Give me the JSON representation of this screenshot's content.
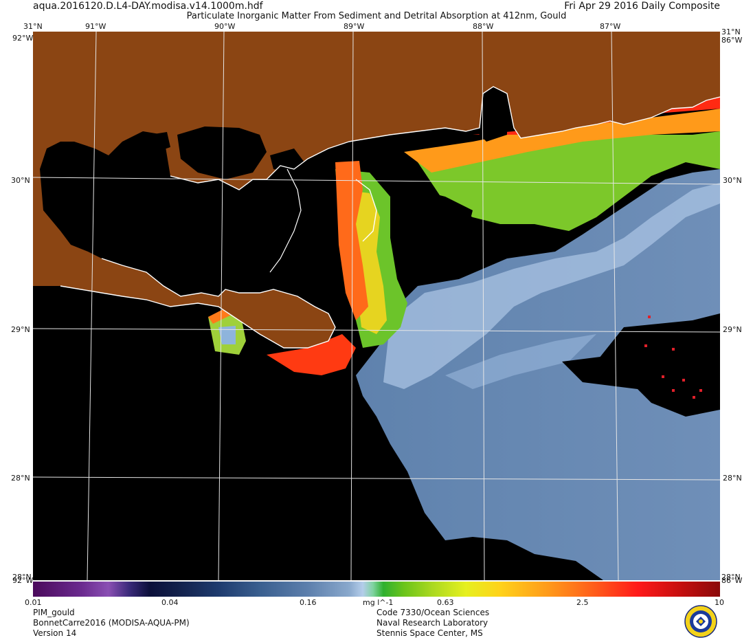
{
  "header": {
    "filename": "aqua.2016120.D.L4-DAY.modisa.v14.1000m.hdf",
    "date": "Fri Apr 29 2016 Daily Composite",
    "product_title": "Particulate Inorganic Matter From Sediment and Detrital Absorption at 412nm, Gould"
  },
  "map": {
    "lon_labels": [
      "91°W",
      "90°W",
      "89°W",
      "88°W",
      "87°W"
    ],
    "lat_labels": [
      "30°N",
      "29°N",
      "28°N"
    ],
    "corner_top_left": "31°N",
    "corner_top_right": "31°N",
    "corner_bottom_left": "28°N",
    "corner_bottom_right": "28°N",
    "edge_lon_left_top": "92°W",
    "edge_lon_right_top": "86°W",
    "edge_lon_left_bottom": "92°W",
    "edge_lon_right_bottom": "86°W",
    "colors": {
      "land": "#8b4513",
      "nodata": "#000000",
      "shoreline": "#ffffff",
      "gridline": "#e6e6e6"
    }
  },
  "colorbar": {
    "ticks": [
      "0.01",
      "0.04",
      "0.16",
      "0.63",
      "2.5",
      "10"
    ],
    "units": "mg l^-1",
    "scale": "log"
  },
  "footer": {
    "left": [
      "PIM_gould",
      "BonnetCarre2016 (MODISA-AQUA-PM)",
      "Version 14"
    ],
    "center": [
      "Code 7330/Ocean Sciences",
      "Naval Research Laboratory",
      "Stennis Space Center, MS"
    ]
  },
  "logo": {
    "icon": "nrl-seal-icon"
  }
}
